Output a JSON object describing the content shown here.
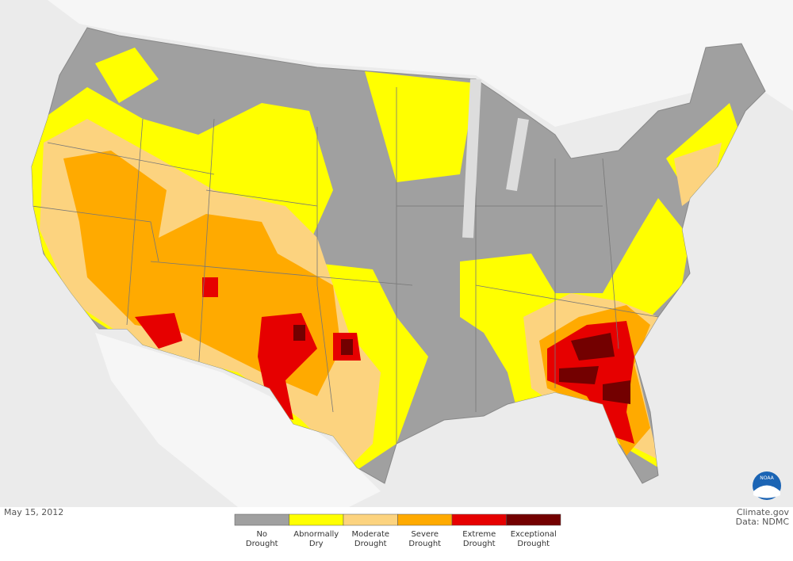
{
  "date": "May 15, 2012",
  "credit": {
    "site": "Climate.gov",
    "data": "Data: NDMC"
  },
  "logo": "NOAA",
  "legend": [
    {
      "lines": [
        "No",
        "Drought"
      ],
      "color": "#a0a0a0"
    },
    {
      "lines": [
        "Abnormally",
        "Dry"
      ],
      "color": "#ffff00"
    },
    {
      "lines": [
        "Moderate",
        "Drought"
      ],
      "color": "#fcd37f"
    },
    {
      "lines": [
        "Severe",
        "Drought"
      ],
      "color": "#ffaa00"
    },
    {
      "lines": [
        "Extreme",
        "Drought"
      ],
      "color": "#e60000"
    },
    {
      "lines": [
        "Exceptional",
        "Drought"
      ],
      "color": "#730000"
    }
  ]
}
